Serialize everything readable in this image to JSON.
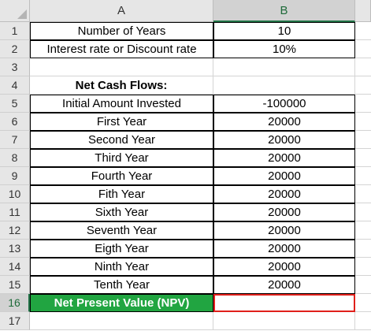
{
  "columns": {
    "a": "A",
    "b": "B"
  },
  "rows": [
    {
      "num": "1",
      "label": "Number of Years",
      "value": "10"
    },
    {
      "num": "2",
      "label": "Interest rate or  Discount rate",
      "value": "10%"
    },
    {
      "num": "3",
      "label": "",
      "value": ""
    },
    {
      "num": "4",
      "label": "Net Cash Flows:",
      "value": ""
    },
    {
      "num": "5",
      "label": "Initial Amount Invested",
      "value": "-100000"
    },
    {
      "num": "6",
      "label": "First Year",
      "value": "20000"
    },
    {
      "num": "7",
      "label": "Second Year",
      "value": "20000"
    },
    {
      "num": "8",
      "label": "Third Year",
      "value": "20000"
    },
    {
      "num": "9",
      "label": "Fourth Year",
      "value": "20000"
    },
    {
      "num": "10",
      "label": "Fith Year",
      "value": "20000"
    },
    {
      "num": "11",
      "label": "Sixth Year",
      "value": "20000"
    },
    {
      "num": "12",
      "label": "Seventh Year",
      "value": "20000"
    },
    {
      "num": "13",
      "label": "Eigth Year",
      "value": "20000"
    },
    {
      "num": "14",
      "label": "Ninth Year",
      "value": "20000"
    },
    {
      "num": "15",
      "label": "Tenth Year",
      "value": "20000"
    },
    {
      "num": "16",
      "label": "Net Present Value (NPV)",
      "value": ""
    },
    {
      "num": "17",
      "label": "",
      "value": ""
    }
  ],
  "colors": {
    "npv_fill": "#21a541",
    "selection_border": "#e0201b",
    "header_accent": "#217346"
  }
}
